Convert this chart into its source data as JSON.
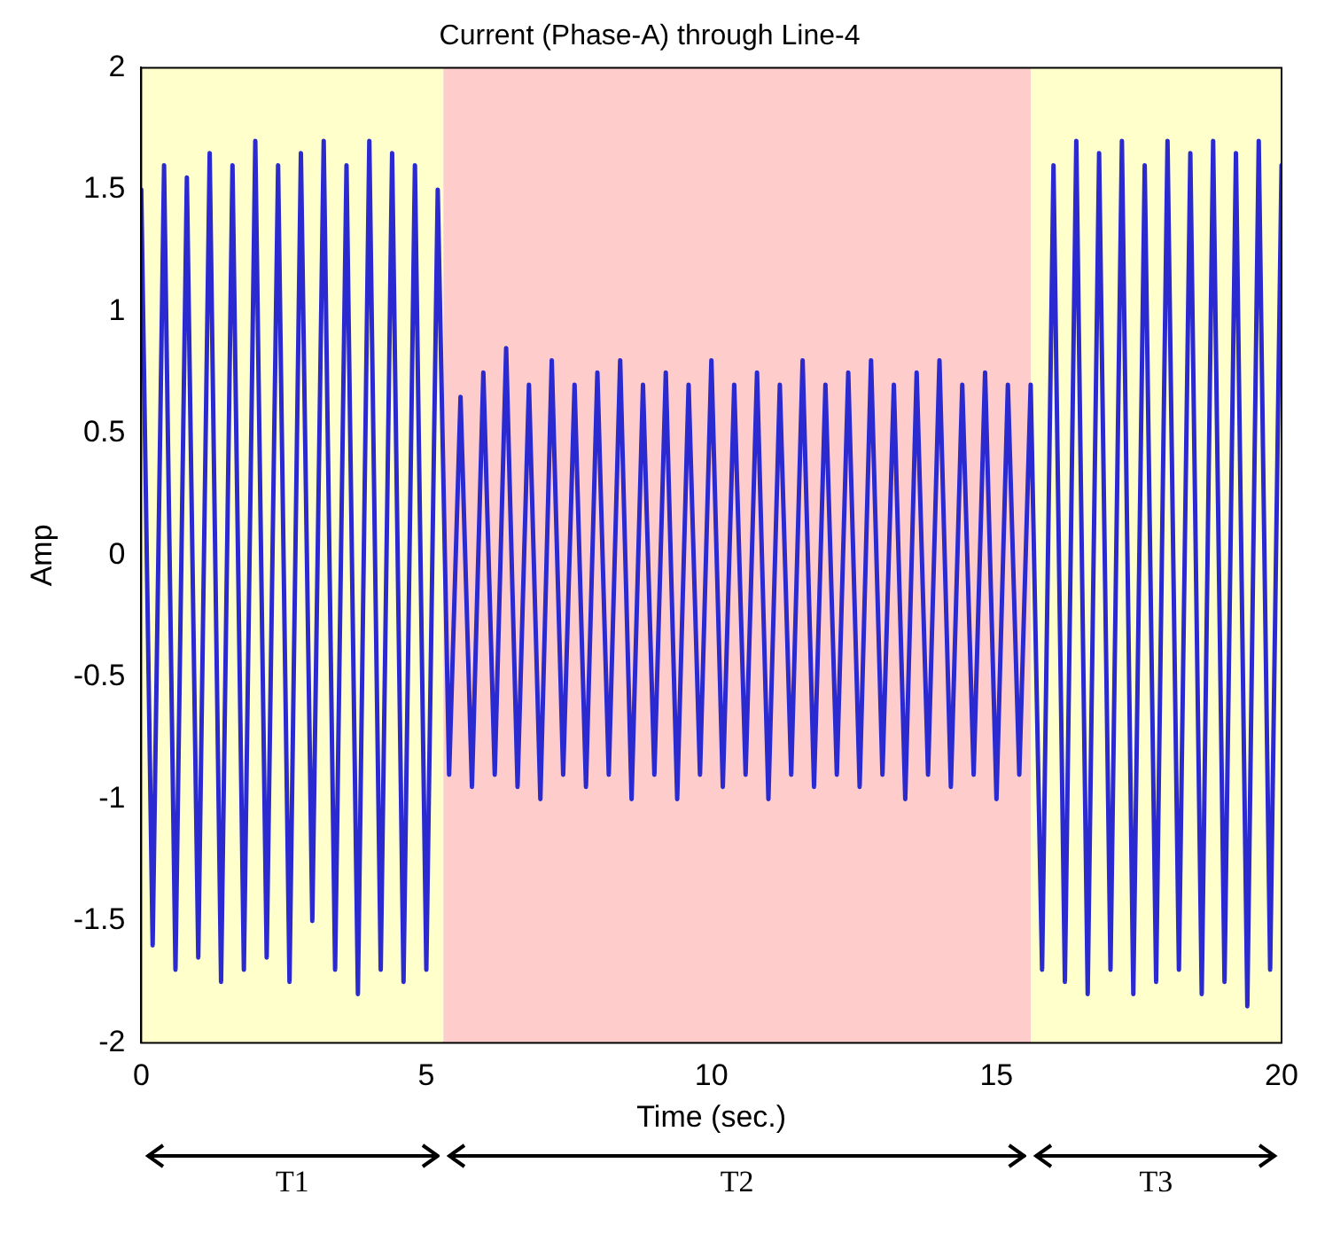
{
  "chart_data": {
    "type": "line",
    "title": "Current (Phase-A) through Line-4",
    "xlabel": "Time (sec.)",
    "ylabel": "Amp",
    "x": [
      0,
      0.2,
      0.4,
      0.6,
      0.8,
      1.0,
      1.2,
      1.4,
      1.6,
      1.8,
      2.0,
      2.2,
      2.4,
      2.6,
      2.8,
      3.0,
      3.2,
      3.4,
      3.6,
      3.8,
      4.0,
      4.2,
      4.4,
      4.6,
      4.8,
      5.0,
      5.2,
      5.4,
      5.6,
      5.8,
      6.0,
      6.2,
      6.4,
      6.6,
      6.8,
      7.0,
      7.2,
      7.4,
      7.6,
      7.8,
      8.0,
      8.2,
      8.4,
      8.6,
      8.8,
      9.0,
      9.2,
      9.4,
      9.6,
      9.8,
      10.0,
      10.2,
      10.4,
      10.6,
      10.8,
      11.0,
      11.2,
      11.4,
      11.6,
      11.8,
      12.0,
      12.2,
      12.4,
      12.6,
      12.8,
      13.0,
      13.2,
      13.4,
      13.6,
      13.8,
      14.0,
      14.2,
      14.4,
      14.6,
      14.8,
      15.0,
      15.2,
      15.4,
      15.6,
      15.8,
      16.0,
      16.2,
      16.4,
      16.6,
      16.8,
      17.0,
      17.2,
      17.4,
      17.6,
      17.8,
      18.0,
      18.2,
      18.4,
      18.6,
      18.8,
      19.0,
      19.2,
      19.4,
      19.6,
      19.8,
      20.0
    ],
    "series": [
      {
        "color": "#2a2ad0",
        "values": [
          1.5,
          -1.6,
          1.6,
          -1.7,
          1.55,
          -1.65,
          1.65,
          -1.75,
          1.6,
          -1.7,
          1.7,
          -1.65,
          1.6,
          -1.75,
          1.65,
          -1.5,
          1.7,
          -1.7,
          1.6,
          -1.8,
          1.7,
          -1.7,
          1.65,
          -1.75,
          1.6,
          -1.7,
          1.5,
          -0.9,
          0.65,
          -0.95,
          0.75,
          -0.9,
          0.85,
          -0.95,
          0.7,
          -1.0,
          0.8,
          -0.9,
          0.7,
          -0.95,
          0.75,
          -0.9,
          0.8,
          -1.0,
          0.7,
          -0.9,
          0.75,
          -1.0,
          0.7,
          -0.9,
          0.8,
          -0.95,
          0.7,
          -0.9,
          0.75,
          -1.0,
          0.7,
          -0.9,
          0.8,
          -0.95,
          0.7,
          -0.9,
          0.75,
          -0.95,
          0.8,
          -0.9,
          0.7,
          -1.0,
          0.75,
          -0.9,
          0.8,
          -0.95,
          0.7,
          -0.9,
          0.75,
          -1.0,
          0.7,
          -0.9,
          0.7,
          -1.7,
          1.6,
          -1.75,
          1.7,
          -1.8,
          1.65,
          -1.7,
          1.7,
          -1.8,
          1.6,
          -1.75,
          1.7,
          -1.7,
          1.65,
          -1.8,
          1.7,
          -1.75,
          1.65,
          -1.85,
          1.7,
          -1.7,
          1.6
        ]
      }
    ],
    "xlim": [
      0,
      20
    ],
    "xticks": [
      0,
      5,
      10,
      15,
      20
    ],
    "ylim": [
      -2,
      2
    ],
    "yticks": [
      -2,
      -1.5,
      -1,
      -0.5,
      0,
      0.5,
      1,
      1.5,
      2
    ],
    "bands": [
      {
        "axis": "x",
        "from": 0,
        "to": 5.3,
        "color": "#ffffcc"
      },
      {
        "axis": "x",
        "from": 5.3,
        "to": 15.6,
        "color": "#ffcccc"
      },
      {
        "axis": "x",
        "from": 15.6,
        "to": 20,
        "color": "#ffffcc"
      }
    ],
    "annotations": [
      "T1",
      "T2",
      "T3"
    ],
    "grid": false,
    "legend": false,
    "marker": "none",
    "line_style": "solid"
  }
}
